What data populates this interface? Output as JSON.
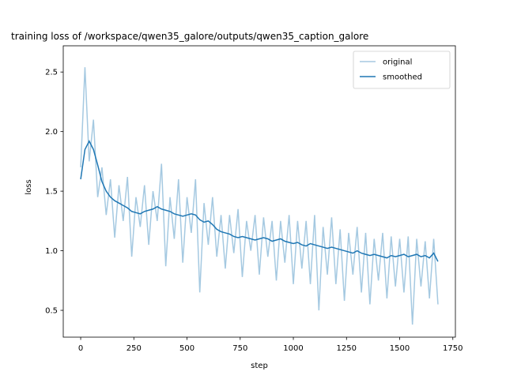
{
  "chart_data": {
    "type": "line",
    "title": "training loss of /workspace/qwen35_galore/outputs/qwen35_caption_galore",
    "xlabel": "step",
    "ylabel": "loss",
    "x": [
      0,
      20,
      40,
      60,
      80,
      100,
      120,
      140,
      160,
      180,
      200,
      220,
      240,
      260,
      280,
      300,
      320,
      340,
      360,
      380,
      400,
      420,
      440,
      460,
      480,
      500,
      520,
      540,
      560,
      580,
      600,
      620,
      640,
      660,
      680,
      700,
      720,
      740,
      760,
      780,
      800,
      820,
      840,
      860,
      880,
      900,
      920,
      940,
      960,
      980,
      1000,
      1020,
      1040,
      1060,
      1080,
      1100,
      1120,
      1140,
      1160,
      1180,
      1200,
      1220,
      1240,
      1260,
      1280,
      1300,
      1320,
      1340,
      1360,
      1380,
      1400,
      1420,
      1440,
      1460,
      1480,
      1500,
      1520,
      1540,
      1560,
      1580,
      1600,
      1620,
      1640,
      1660,
      1680
    ],
    "series": [
      {
        "name": "original",
        "color": "#1f77b4",
        "alpha": 0.4,
        "values": [
          1.7,
          2.54,
          1.75,
          2.1,
          1.45,
          1.7,
          1.3,
          1.6,
          1.11,
          1.55,
          1.25,
          1.62,
          0.95,
          1.45,
          1.2,
          1.55,
          1.05,
          1.5,
          1.25,
          1.73,
          0.87,
          1.45,
          1.1,
          1.6,
          0.9,
          1.45,
          1.15,
          1.6,
          0.65,
          1.4,
          1.05,
          1.45,
          0.95,
          1.3,
          0.85,
          1.3,
          0.98,
          1.35,
          0.78,
          1.25,
          1.0,
          1.3,
          0.8,
          1.28,
          0.95,
          1.25,
          0.75,
          1.25,
          0.9,
          1.3,
          0.72,
          1.25,
          0.85,
          1.25,
          0.72,
          1.3,
          0.5,
          1.2,
          0.8,
          1.28,
          0.72,
          1.18,
          0.58,
          1.15,
          0.8,
          1.2,
          0.65,
          1.15,
          0.55,
          1.1,
          0.75,
          1.15,
          0.6,
          1.12,
          0.7,
          1.1,
          0.65,
          1.12,
          0.38,
          1.1,
          0.7,
          1.08,
          0.6,
          1.1,
          0.55
        ]
      },
      {
        "name": "smoothed",
        "color": "#1f77b4",
        "alpha": 1,
        "values": [
          1.6,
          1.85,
          1.92,
          1.85,
          1.72,
          1.58,
          1.5,
          1.45,
          1.42,
          1.4,
          1.38,
          1.36,
          1.33,
          1.32,
          1.31,
          1.33,
          1.34,
          1.35,
          1.37,
          1.35,
          1.34,
          1.33,
          1.31,
          1.3,
          1.29,
          1.3,
          1.31,
          1.3,
          1.26,
          1.24,
          1.25,
          1.22,
          1.18,
          1.16,
          1.15,
          1.14,
          1.12,
          1.11,
          1.12,
          1.11,
          1.1,
          1.09,
          1.1,
          1.11,
          1.1,
          1.08,
          1.09,
          1.1,
          1.08,
          1.07,
          1.06,
          1.07,
          1.05,
          1.04,
          1.06,
          1.05,
          1.04,
          1.03,
          1.02,
          1.03,
          1.02,
          1.01,
          1.0,
          0.99,
          0.98,
          1.0,
          0.98,
          0.97,
          0.96,
          0.97,
          0.96,
          0.95,
          0.94,
          0.96,
          0.95,
          0.96,
          0.97,
          0.95,
          0.96,
          0.97,
          0.95,
          0.96,
          0.94,
          0.98,
          0.91
        ]
      }
    ],
    "xlim": [
      -82,
      1762
    ],
    "ylim": [
      0.275,
      2.72
    ],
    "xticks": [
      0,
      250,
      500,
      750,
      1000,
      1250,
      1500,
      1750
    ],
    "yticks": [
      0.5,
      {
        "value": 1.0,
        "label": "1.0"
      },
      1.5,
      {
        "value": 2.0,
        "label": "2.0"
      },
      2.5
    ],
    "legend": "upper right"
  }
}
